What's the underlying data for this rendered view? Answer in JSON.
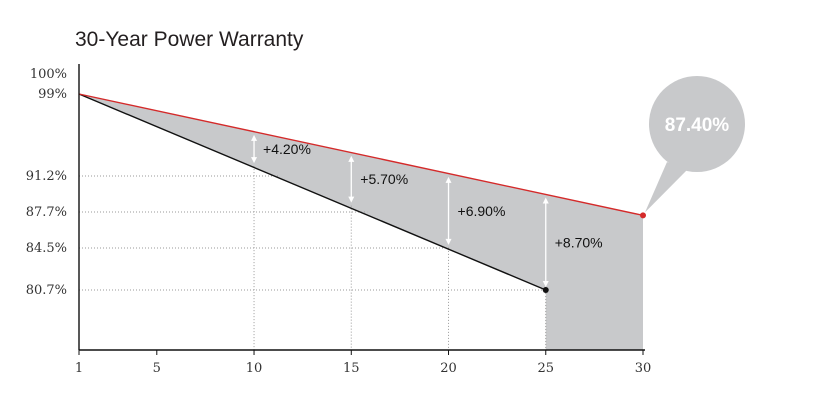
{
  "chart_data": {
    "type": "area",
    "title": "30-Year Power Warranty",
    "xlabel": "",
    "ylabel": "",
    "x_ticks": [
      1,
      5,
      10,
      15,
      20,
      25,
      30
    ],
    "y_ticks": [
      {
        "value": 100,
        "label": "100%"
      },
      {
        "value": 99,
        "label": "99%"
      },
      {
        "value": 91.2,
        "label": "91.2%"
      },
      {
        "value": 87.7,
        "label": "87.7%"
      },
      {
        "value": 84.5,
        "label": "84.5%"
      },
      {
        "value": 80.7,
        "label": "80.7%"
      }
    ],
    "series": [
      {
        "values": [
          {
            "x": 1,
            "y": 99
          },
          {
            "x": 30,
            "y": 87.4
          }
        ],
        "color": "#d42a2a"
      },
      {
        "values": [
          {
            "x": 1,
            "y": 99
          },
          {
            "x": 25,
            "y": 80.7
          }
        ],
        "color": "#111111"
      }
    ],
    "differences": [
      {
        "x": 10,
        "label": "+4.20%"
      },
      {
        "x": 15,
        "label": "+5.70%"
      },
      {
        "x": 20,
        "label": "+6.90%"
      },
      {
        "x": 25,
        "label": "+8.70%"
      }
    ],
    "callout": {
      "x": 30,
      "y": 87.4,
      "label": "87.40%"
    },
    "fill_color": "#c8c9cb",
    "grid": "dotted"
  }
}
